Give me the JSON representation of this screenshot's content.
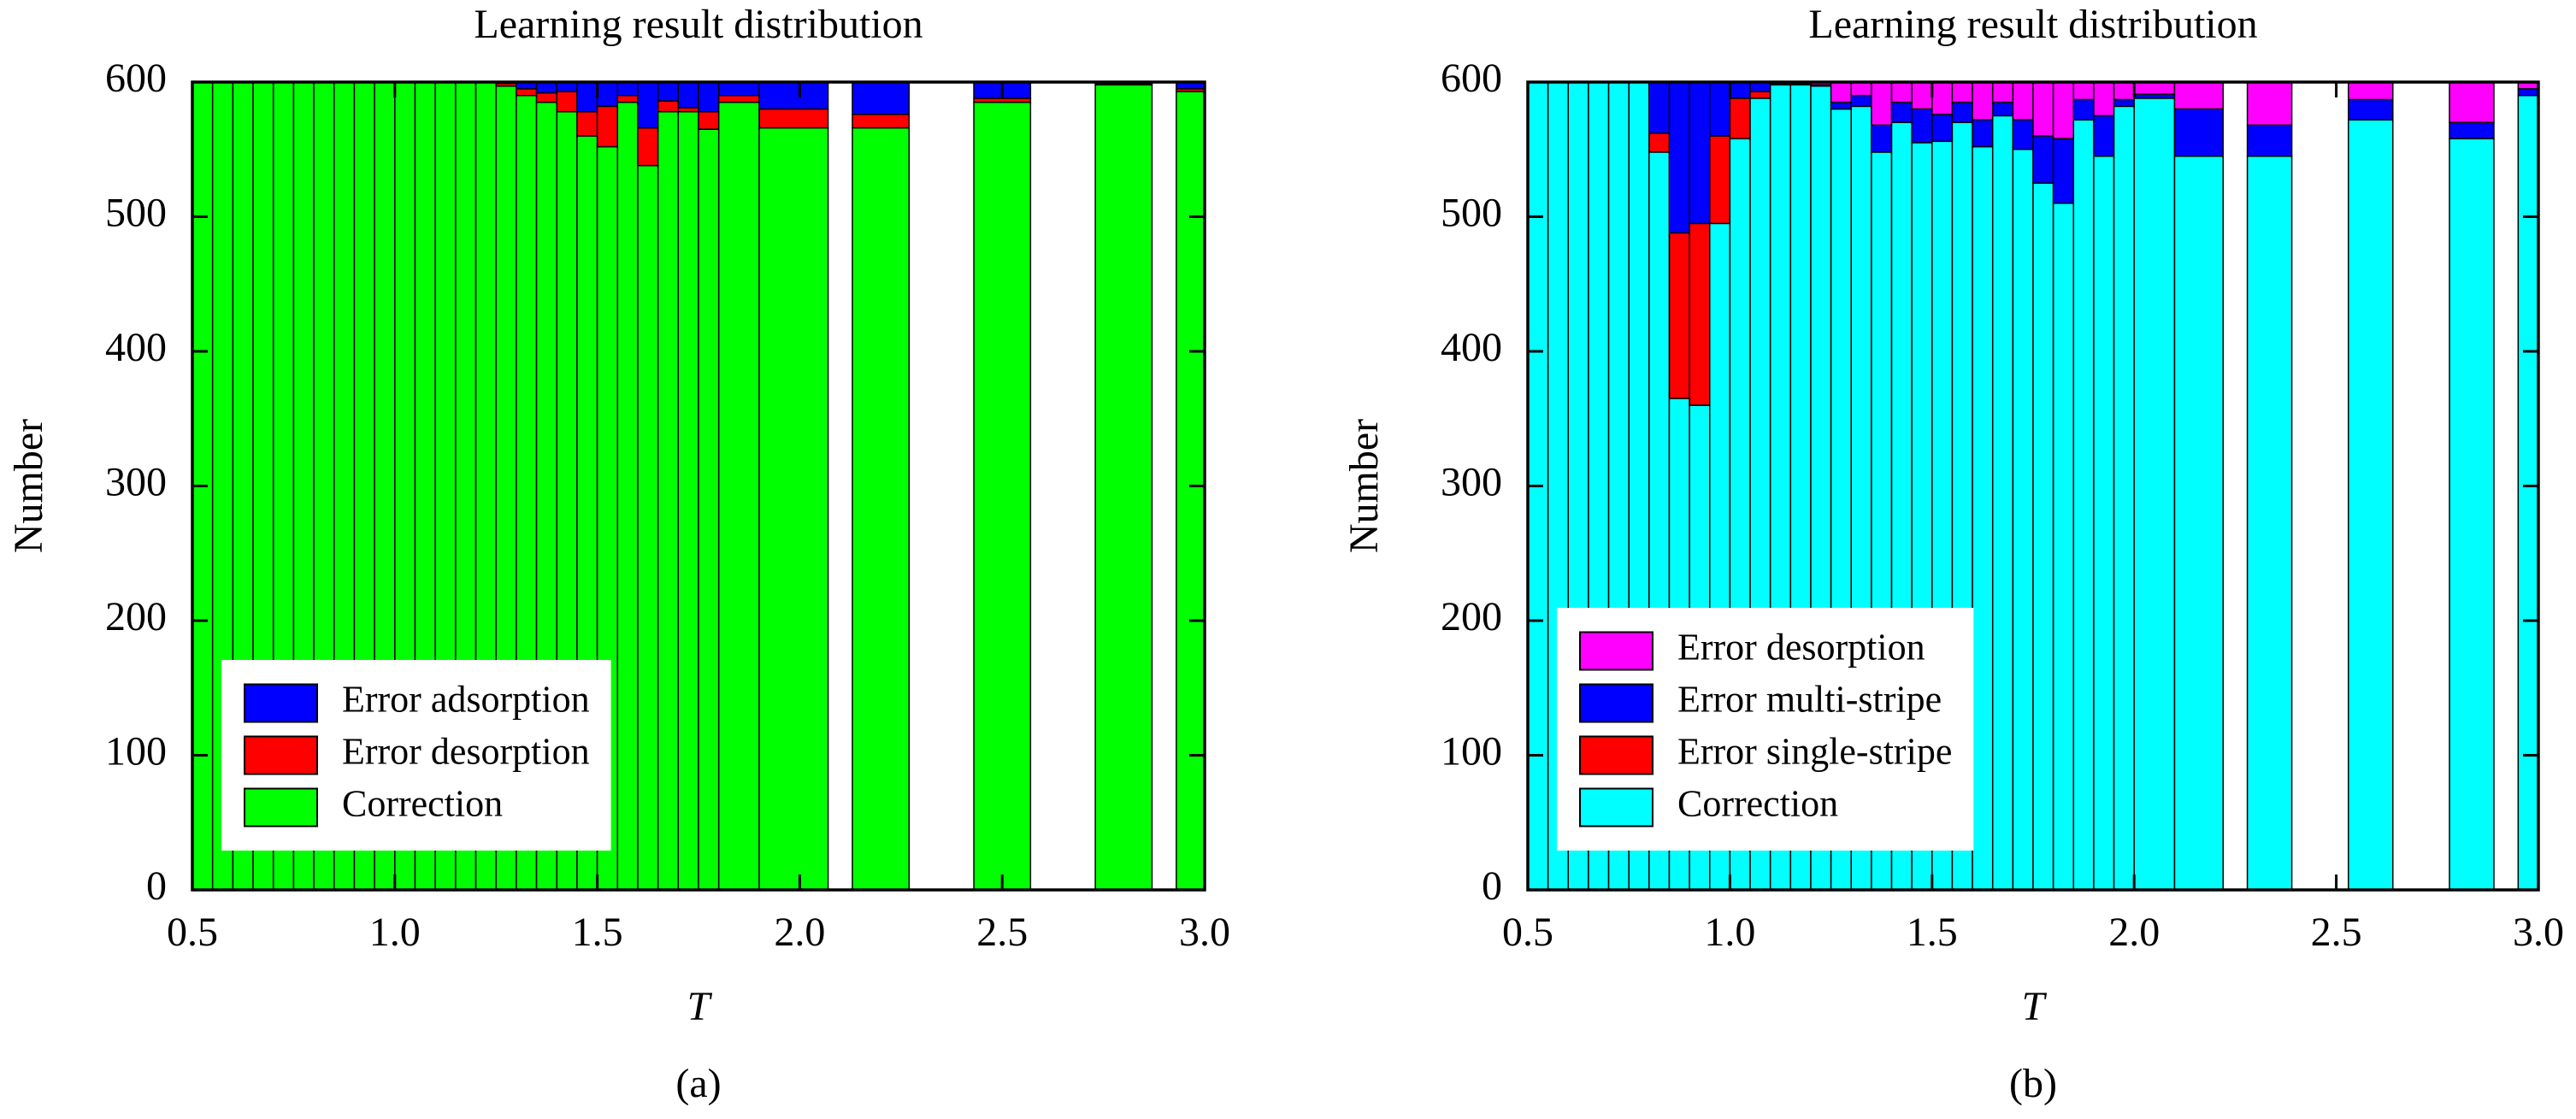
{
  "chart_data": [
    {
      "type": "histogram",
      "stacked": true,
      "title": "Learning result distribution",
      "xlabel": "T",
      "ylabel": "Number",
      "caption": "(a)",
      "bins": [
        0.5,
        0.55,
        0.6,
        0.65,
        0.7,
        0.75,
        0.8,
        0.85,
        0.9,
        0.95,
        1.0,
        1.05,
        1.1,
        1.15,
        1.2,
        1.25,
        1.3,
        1.35,
        1.4,
        1.45,
        1.5,
        1.55,
        1.6,
        1.65,
        1.7,
        1.75,
        1.8,
        1.9,
        2.07,
        2.13,
        2.27,
        2.43,
        2.57,
        2.73,
        2.87,
        2.93,
        3.0
      ],
      "series": [
        {
          "name": "Correction",
          "color": "#00ff00",
          "values": [
            600,
            600,
            600,
            600,
            600,
            600,
            600,
            600,
            600,
            600,
            600,
            600,
            600,
            600,
            600,
            597,
            590,
            585,
            578,
            560,
            552,
            585,
            538,
            578,
            578,
            565,
            585,
            566,
            0,
            566,
            0,
            585,
            0,
            598,
            0,
            593
          ]
        },
        {
          "name": "Error desorption",
          "color": "#ff0000",
          "values": [
            0,
            0,
            0,
            0,
            0,
            0,
            0,
            0,
            0,
            0,
            0,
            0,
            0,
            0,
            0,
            2,
            5,
            7,
            15,
            18,
            30,
            5,
            28,
            8,
            3,
            13,
            5,
            14,
            0,
            10,
            0,
            3,
            0,
            1,
            0,
            2
          ]
        },
        {
          "name": "Error adsorption",
          "color": "#0000ff",
          "values": [
            0,
            0,
            0,
            0,
            0,
            0,
            0,
            0,
            0,
            0,
            0,
            0,
            0,
            0,
            0,
            1,
            5,
            8,
            7,
            22,
            18,
            10,
            34,
            14,
            19,
            22,
            10,
            20,
            0,
            24,
            0,
            12,
            0,
            1,
            0,
            5
          ]
        }
      ],
      "xlim": [
        0.5,
        3.0
      ],
      "xticks": [
        0.5,
        {
          "value": 1,
          "label": "1.0"
        },
        1.5,
        {
          "value": 2,
          "label": "2.0"
        },
        2.5,
        {
          "value": 3,
          "label": "3.0"
        }
      ],
      "ylim": [
        0,
        600
      ],
      "yticks": [
        0,
        100,
        200,
        300,
        400,
        500,
        600
      ],
      "legend": "lower left"
    },
    {
      "type": "histogram",
      "stacked": true,
      "title": "Learning result distribution",
      "xlabel": "T",
      "ylabel": "Number",
      "caption": "(b)",
      "bins": [
        0.5,
        0.55,
        0.6,
        0.65,
        0.7,
        0.75,
        0.8,
        0.85,
        0.9,
        0.95,
        1.0,
        1.05,
        1.1,
        1.15,
        1.2,
        1.25,
        1.3,
        1.35,
        1.4,
        1.45,
        1.5,
        1.55,
        1.6,
        1.65,
        1.7,
        1.75,
        1.8,
        1.85,
        1.9,
        1.95,
        2.0,
        2.1,
        2.22,
        2.28,
        2.39,
        2.53,
        2.64,
        2.78,
        2.89,
        2.95,
        3.0
      ],
      "series": [
        {
          "name": "Correction",
          "color": "#00ffff",
          "values": [
            600,
            600,
            600,
            600,
            600,
            600,
            548,
            365,
            360,
            495,
            558,
            588,
            598,
            598,
            597,
            580,
            582,
            548,
            570,
            555,
            556,
            570,
            552,
            575,
            550,
            525,
            510,
            572,
            545,
            582,
            588,
            545,
            0,
            545,
            0,
            572,
            0,
            558,
            0,
            590
          ]
        },
        {
          "name": "Error single-stripe",
          "color": "#ff0000",
          "values": [
            0,
            0,
            0,
            0,
            0,
            0,
            14,
            123,
            135,
            65,
            30,
            5,
            0,
            0,
            0,
            0,
            0,
            0,
            0,
            0,
            0,
            0,
            0,
            0,
            0,
            0,
            0,
            0,
            0,
            0,
            0,
            0,
            0,
            0,
            0,
            0,
            0,
            0,
            0,
            0
          ]
        },
        {
          "name": "Error multi-stripe",
          "color": "#0000ff",
          "values": [
            0,
            0,
            0,
            0,
            0,
            0,
            38,
            112,
            105,
            40,
            12,
            7,
            1,
            1,
            1,
            5,
            8,
            20,
            15,
            25,
            20,
            15,
            20,
            10,
            22,
            35,
            48,
            15,
            30,
            5,
            3,
            35,
            0,
            23,
            0,
            15,
            0,
            12,
            0,
            5
          ]
        },
        {
          "name": "Error desorption",
          "color": "#ff00ff",
          "values": [
            0,
            0,
            0,
            0,
            0,
            0,
            0,
            0,
            0,
            0,
            0,
            0,
            1,
            1,
            2,
            15,
            10,
            32,
            15,
            20,
            24,
            15,
            28,
            15,
            28,
            40,
            42,
            13,
            25,
            13,
            9,
            20,
            0,
            32,
            0,
            13,
            0,
            30,
            0,
            5
          ]
        }
      ],
      "xlim": [
        0.5,
        3.0
      ],
      "xticks": [
        0.5,
        {
          "value": 1,
          "label": "1.0"
        },
        1.5,
        {
          "value": 2,
          "label": "2.0"
        },
        2.5,
        {
          "value": 3,
          "label": "3.0"
        }
      ],
      "ylim": [
        0,
        600
      ],
      "yticks": [
        0,
        100,
        200,
        300,
        400,
        500,
        600
      ],
      "legend": "lower left"
    }
  ]
}
